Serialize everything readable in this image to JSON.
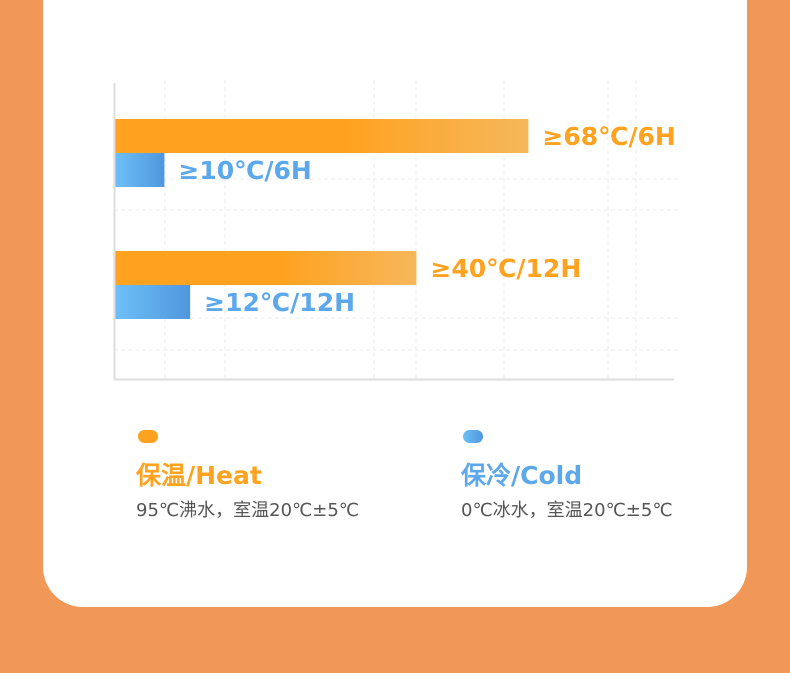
{
  "colors": {
    "heat": "#ffa21f",
    "heat_end": "#f6b75c",
    "cold": "#6ec0f8",
    "cold_end": "#4f97dd",
    "background": "#f19859"
  },
  "chart_data": {
    "type": "bar",
    "orientation": "horizontal",
    "grid": true,
    "legend_placement": "bottom",
    "groups": [
      {
        "bars": [
          {
            "series": "heat",
            "label": "≥68℃/6H",
            "relative_length": 0.74
          },
          {
            "series": "cold",
            "label": "≥10℃/6H",
            "relative_length": 0.09
          }
        ]
      },
      {
        "bars": [
          {
            "series": "heat",
            "label": "≥40℃/12H",
            "relative_length": 0.54
          },
          {
            "series": "cold",
            "label": "≥12℃/12H",
            "relative_length": 0.136
          }
        ]
      }
    ]
  },
  "legend": [
    {
      "series": "heat",
      "title": "保温/Heat",
      "subtitle": "95℃沸水，室温20℃±5℃"
    },
    {
      "series": "cold",
      "title": "保冷/Cold",
      "subtitle": "0℃冰水，室温20℃±5℃"
    }
  ]
}
